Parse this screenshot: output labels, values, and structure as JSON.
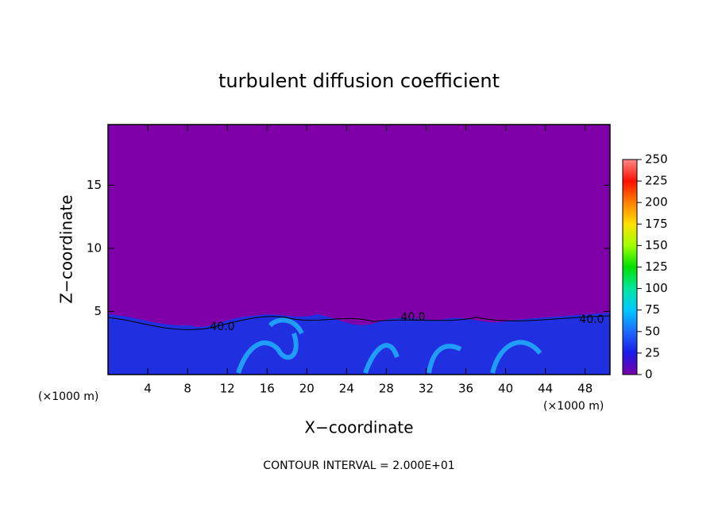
{
  "chart_data": {
    "type": "contour",
    "title": "turbulent diffusion coefficient",
    "x_label": "X−coordinate",
    "y_label": "Z−coordinate",
    "x_unit_left": "(×1000 m)",
    "x_unit_right": "(×1000 m)",
    "footer": "CONTOUR INTERVAL = 2.000E+01",
    "contour_labels": [
      "40.0",
      "40.0",
      "40.0"
    ],
    "xlim": [
      0,
      50.5
    ],
    "xticks": [
      4,
      8,
      12,
      16,
      20,
      24,
      28,
      32,
      36,
      40,
      44,
      48
    ],
    "ylim": [
      0,
      19.8
    ],
    "yticks": [
      5,
      10,
      15
    ],
    "colorbar": {
      "lim": [
        0,
        250
      ],
      "ticks": [
        0,
        25,
        50,
        75,
        100,
        125,
        150,
        175,
        200,
        225,
        250
      ],
      "colors": [
        "#7a00a8",
        "#1a1ae6",
        "#1e6aff",
        "#00c8ff",
        "#00e6a0",
        "#00e000",
        "#a0ff00",
        "#ffe000",
        "#ff8000",
        "#ff1000",
        "#ff8a8a"
      ]
    }
  }
}
